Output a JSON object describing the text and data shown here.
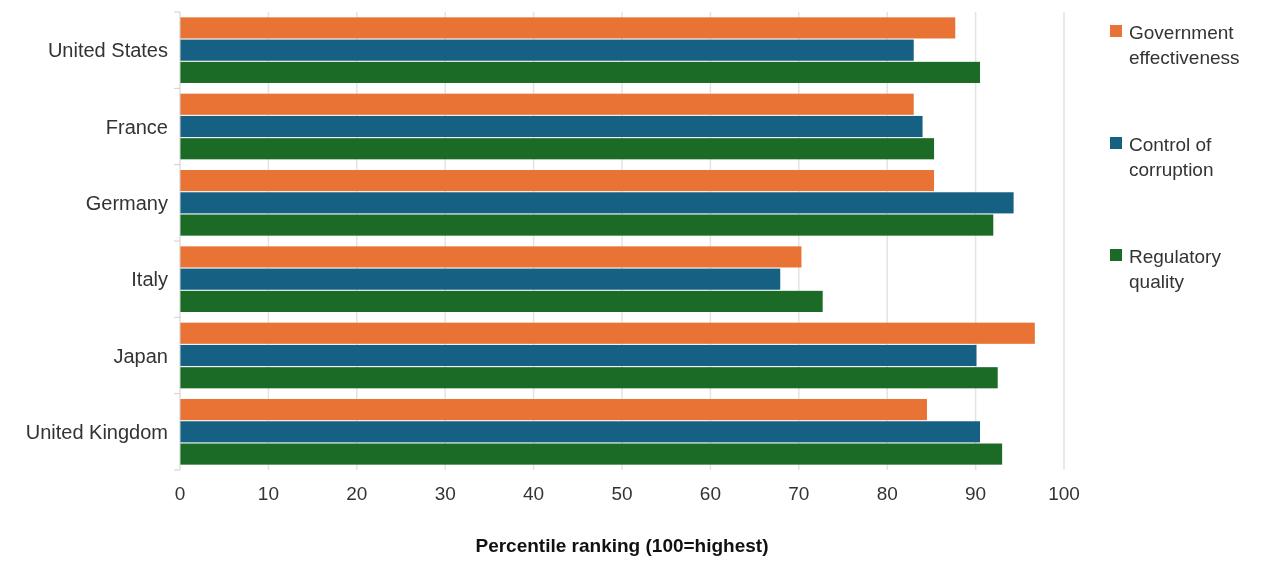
{
  "chart_data": {
    "type": "bar",
    "orientation": "horizontal",
    "xlabel": "Percentile ranking (100=highest)",
    "categories": [
      "United States",
      "France",
      "Germany",
      "Italy",
      "Japan",
      "United Kingdom"
    ],
    "series": [
      {
        "name": "Government effectiveness",
        "color": "#e97334",
        "values": [
          87.7,
          83.0,
          85.3,
          70.3,
          96.7,
          84.5
        ]
      },
      {
        "name": "Control of corruption",
        "color": "#166083",
        "values": [
          83.0,
          84.0,
          94.3,
          67.9,
          90.1,
          90.5
        ]
      },
      {
        "name": "Regulatory quality",
        "color": "#1b6a25",
        "values": [
          90.5,
          85.3,
          92.0,
          72.7,
          92.5,
          93.0
        ]
      }
    ],
    "xlim": [
      0,
      100
    ],
    "xticks": [
      0,
      10,
      20,
      30,
      40,
      50,
      60,
      70,
      80,
      90,
      100
    ],
    "grid": "x",
    "legend": "right"
  }
}
